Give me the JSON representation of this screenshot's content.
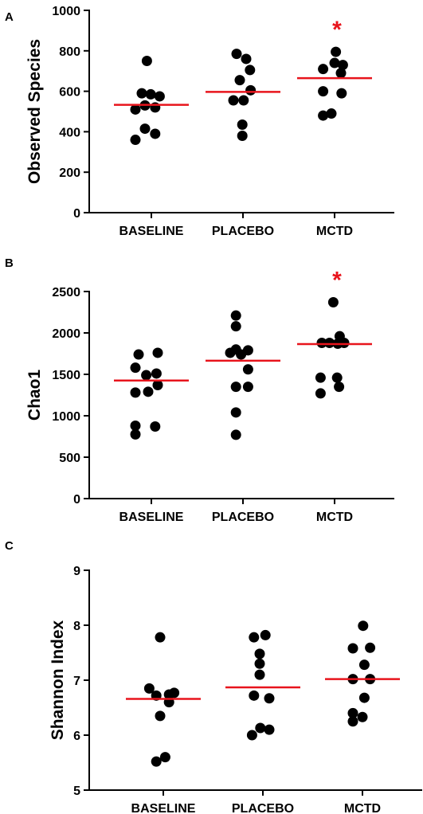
{
  "colors": {
    "mean_line": "#e8141c",
    "significance": "#e8141c",
    "points": "#000000"
  },
  "chart_data": [
    {
      "type": "scatter",
      "panel": "A",
      "ylabel": "Observed Species",
      "ylim": [
        0,
        1000
      ],
      "yticks": [
        0,
        200,
        400,
        600,
        800,
        1000
      ],
      "categories": [
        "BASELINE",
        "PLACEBO",
        "MCTD"
      ],
      "groups": [
        {
          "category": "BASELINE",
          "mean": 533,
          "points": [
            [
              -0.25,
              360
            ],
            [
              -0.1,
              415
            ],
            [
              0.06,
              390
            ],
            [
              -0.25,
              510
            ],
            [
              -0.1,
              530
            ],
            [
              0.06,
              520
            ],
            [
              0.13,
              575
            ],
            [
              -0.15,
              590
            ],
            [
              -0.01,
              585
            ],
            [
              -0.07,
              750
            ]
          ],
          "significance": ""
        },
        {
          "category": "PLACEBO",
          "mean": 597,
          "points": [
            [
              -0.01,
              380
            ],
            [
              -0.01,
              435
            ],
            [
              -0.15,
              555
            ],
            [
              0.01,
              555
            ],
            [
              0.12,
              605
            ],
            [
              -0.05,
              655
            ],
            [
              0.11,
              705
            ],
            [
              -0.1,
              785
            ],
            [
              0.05,
              760
            ]
          ],
          "significance": ""
        },
        {
          "category": "MCTD",
          "mean": 665,
          "points": [
            [
              -0.18,
              480
            ],
            [
              -0.05,
              490
            ],
            [
              -0.18,
              600
            ],
            [
              0.11,
              590
            ],
            [
              0.1,
              690
            ],
            [
              -0.18,
              710
            ],
            [
              0.0,
              740
            ],
            [
              0.13,
              730
            ],
            [
              0.02,
              795
            ]
          ],
          "significance": "*"
        }
      ]
    },
    {
      "type": "scatter",
      "panel": "B",
      "ylabel": "Chao1",
      "ylim": [
        0,
        2500
      ],
      "yticks": [
        0,
        500,
        1000,
        1500,
        2000,
        2500
      ],
      "categories": [
        "BASELINE",
        "PLACEBO",
        "MCTD"
      ],
      "groups": [
        {
          "category": "BASELINE",
          "mean": 1425,
          "points": [
            [
              -0.25,
              775
            ],
            [
              -0.25,
              880
            ],
            [
              0.06,
              870
            ],
            [
              -0.25,
              1280
            ],
            [
              -0.05,
              1290
            ],
            [
              0.1,
              1370
            ],
            [
              -0.08,
              1490
            ],
            [
              0.08,
              1510
            ],
            [
              -0.25,
              1580
            ],
            [
              -0.2,
              1740
            ],
            [
              0.1,
              1760
            ]
          ],
          "significance": ""
        },
        {
          "category": "PLACEBO",
          "mean": 1665,
          "points": [
            [
              -0.11,
              770
            ],
            [
              -0.11,
              1040
            ],
            [
              -0.11,
              1350
            ],
            [
              0.08,
              1350
            ],
            [
              0.08,
              1560
            ],
            [
              -0.03,
              1740
            ],
            [
              0.08,
              1790
            ],
            [
              -0.2,
              1760
            ],
            [
              -0.11,
              1800
            ],
            [
              -0.11,
              2080
            ],
            [
              -0.11,
              2210
            ]
          ],
          "significance": ""
        },
        {
          "category": "MCTD",
          "mean": 1865,
          "points": [
            [
              -0.22,
              1270
            ],
            [
              0.07,
              1350
            ],
            [
              -0.22,
              1460
            ],
            [
              0.04,
              1460
            ],
            [
              -0.2,
              1880
            ],
            [
              -0.08,
              1880
            ],
            [
              0.05,
              1870
            ],
            [
              0.15,
              1880
            ],
            [
              0.08,
              1960
            ],
            [
              -0.02,
              2370
            ]
          ],
          "significance": "*"
        }
      ]
    },
    {
      "type": "scatter",
      "panel": "C",
      "ylabel": "Shannon Index",
      "ylim": [
        5,
        9
      ],
      "yticks": [
        5,
        6,
        7,
        8,
        9
      ],
      "categories": [
        "BASELINE",
        "PLACEBO",
        "MCTD"
      ],
      "groups": [
        {
          "category": "BASELINE",
          "mean": 6.66,
          "points": [
            [
              -0.11,
              5.52
            ],
            [
              0.03,
              5.6
            ],
            [
              -0.05,
              6.35
            ],
            [
              0.09,
              6.6
            ],
            [
              -0.22,
              6.85
            ],
            [
              -0.11,
              6.72
            ],
            [
              0.09,
              6.74
            ],
            [
              0.17,
              6.77
            ],
            [
              -0.05,
              7.78
            ]
          ],
          "significance": ""
        },
        {
          "category": "PLACEBO",
          "mean": 6.87,
          "points": [
            [
              -0.17,
              6.0
            ],
            [
              -0.04,
              6.13
            ],
            [
              0.1,
              6.1
            ],
            [
              -0.14,
              6.72
            ],
            [
              0.1,
              6.67
            ],
            [
              -0.05,
              7.1
            ],
            [
              -0.05,
              7.3
            ],
            [
              -0.05,
              7.48
            ],
            [
              -0.14,
              7.78
            ],
            [
              0.04,
              7.82
            ]
          ],
          "significance": ""
        },
        {
          "category": "MCTD",
          "mean": 7.02,
          "points": [
            [
              -0.15,
              6.25
            ],
            [
              0.0,
              6.33
            ],
            [
              -0.15,
              6.4
            ],
            [
              0.03,
              6.68
            ],
            [
              0.12,
              7.02
            ],
            [
              -0.15,
              7.02
            ],
            [
              0.03,
              7.28
            ],
            [
              -0.15,
              7.58
            ],
            [
              0.12,
              7.59
            ],
            [
              0.01,
              7.99
            ]
          ],
          "significance": ""
        }
      ]
    }
  ]
}
